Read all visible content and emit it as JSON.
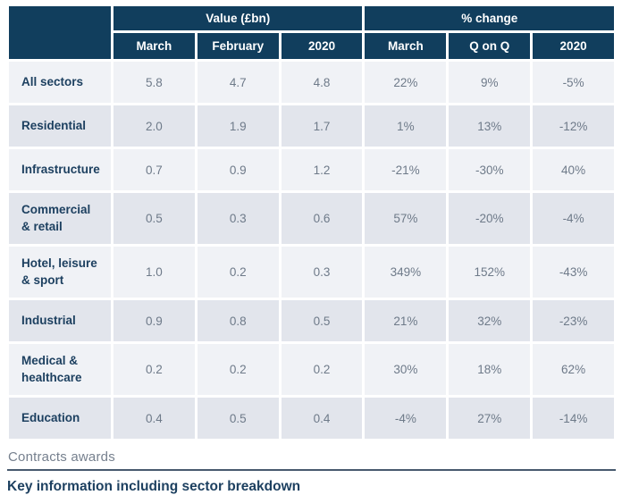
{
  "chart_data": {
    "type": "table",
    "group_headers": [
      "Value (£bn)",
      "% change"
    ],
    "sub_headers": [
      "March",
      "February",
      "2020",
      "March",
      "Q on Q",
      "2020"
    ],
    "rows": [
      {
        "sector": "All sectors",
        "cells": [
          "5.8",
          "4.7",
          "4.8",
          "22%",
          "9%",
          "-5%"
        ]
      },
      {
        "sector": "Residential",
        "cells": [
          "2.0",
          "1.9",
          "1.7",
          "1%",
          "13%",
          "-12%"
        ]
      },
      {
        "sector": "Infrastructure",
        "cells": [
          "0.7",
          "0.9",
          "1.2",
          "-21%",
          "-30%",
          "40%"
        ]
      },
      {
        "sector": "Commercial\n& retail",
        "cells": [
          "0.5",
          "0.3",
          "0.6",
          "57%",
          "-20%",
          "-4%"
        ]
      },
      {
        "sector": "Hotel, leisure\n& sport",
        "cells": [
          "1.0",
          "0.2",
          "0.3",
          "349%",
          "152%",
          "-43%"
        ]
      },
      {
        "sector": "Industrial",
        "cells": [
          "0.9",
          "0.8",
          "0.5",
          "21%",
          "32%",
          "-23%"
        ]
      },
      {
        "sector": "Medical &\nhealthcare",
        "cells": [
          "0.2",
          "0.2",
          "0.2",
          "30%",
          "18%",
          "62%"
        ]
      },
      {
        "sector": "Education",
        "cells": [
          "0.4",
          "0.5",
          "0.4",
          "-4%",
          "27%",
          "-14%"
        ]
      }
    ]
  },
  "footer": {
    "tab_label": "Contracts awards",
    "heading": "Key information including sector breakdown"
  },
  "colors": {
    "header_navy": "#113e5d",
    "row_light": "#f0f2f6",
    "row_dark": "#e2e5ec",
    "sector_text": "#1d4060",
    "value_text": "#6e7a89",
    "tab_text": "#76808e",
    "rule": "#47596e"
  }
}
